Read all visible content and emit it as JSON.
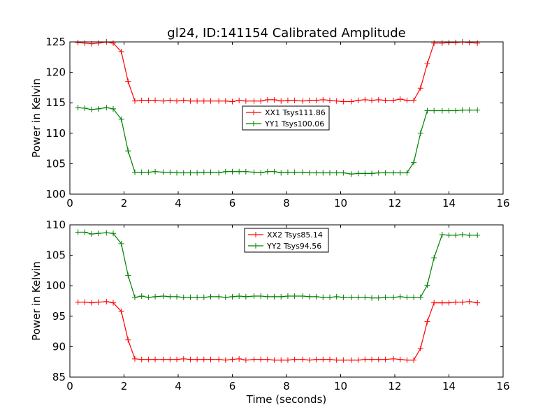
{
  "chart_data": [
    {
      "type": "line",
      "title": "gl24, ID:141154 Calibrated Amplitude",
      "xlabel": "",
      "ylabel": "Power in Kelvin",
      "xlim": [
        0,
        16
      ],
      "ylim": [
        100,
        125
      ],
      "xticks": [
        0,
        2,
        4,
        6,
        8,
        10,
        12,
        14,
        16
      ],
      "yticks": [
        100,
        105,
        110,
        115,
        120,
        125
      ],
      "grid": false,
      "legend_position": "center",
      "x": [
        0.3,
        0.55,
        0.8,
        1.05,
        1.35,
        1.6,
        1.9,
        2.15,
        2.4,
        2.65,
        2.9,
        3.15,
        3.45,
        3.7,
        3.95,
        4.2,
        4.45,
        4.7,
        4.95,
        5.2,
        5.5,
        5.75,
        6.0,
        6.25,
        6.5,
        6.8,
        7.05,
        7.3,
        7.55,
        7.8,
        8.05,
        8.3,
        8.6,
        8.85,
        9.1,
        9.35,
        9.6,
        9.85,
        10.1,
        10.4,
        10.65,
        10.9,
        11.15,
        11.4,
        11.65,
        11.95,
        12.2,
        12.45,
        12.7,
        12.95,
        13.2,
        13.45,
        13.75,
        14.0,
        14.25,
        14.5,
        14.75,
        15.05
      ],
      "series": [
        {
          "name": "XX1 Tsys111.86",
          "color": "#ff0000",
          "values": [
            124.9,
            124.8,
            124.7,
            124.8,
            125.0,
            124.8,
            123.4,
            118.5,
            115.3,
            115.4,
            115.4,
            115.4,
            115.3,
            115.4,
            115.3,
            115.4,
            115.3,
            115.3,
            115.3,
            115.3,
            115.3,
            115.3,
            115.2,
            115.4,
            115.3,
            115.3,
            115.3,
            115.5,
            115.5,
            115.3,
            115.4,
            115.4,
            115.3,
            115.4,
            115.4,
            115.5,
            115.4,
            115.3,
            115.2,
            115.2,
            115.4,
            115.5,
            115.4,
            115.5,
            115.4,
            115.4,
            115.6,
            115.4,
            115.4,
            117.4,
            121.4,
            124.8,
            124.8,
            124.9,
            124.9,
            125.0,
            124.9,
            124.8
          ]
        },
        {
          "name": "YY1 Tsys100.06",
          "color": "#008000",
          "values": [
            114.2,
            114.1,
            113.9,
            114.0,
            114.2,
            114.0,
            112.3,
            107.1,
            103.6,
            103.6,
            103.6,
            103.7,
            103.6,
            103.6,
            103.5,
            103.5,
            103.5,
            103.5,
            103.6,
            103.6,
            103.5,
            103.7,
            103.7,
            103.7,
            103.7,
            103.6,
            103.5,
            103.7,
            103.7,
            103.5,
            103.6,
            103.6,
            103.6,
            103.5,
            103.5,
            103.5,
            103.5,
            103.5,
            103.5,
            103.3,
            103.4,
            103.4,
            103.4,
            103.5,
            103.5,
            103.5,
            103.5,
            103.5,
            105.2,
            110.0,
            113.7,
            113.7,
            113.7,
            113.7,
            113.7,
            113.8,
            113.8,
            113.8
          ]
        }
      ]
    },
    {
      "type": "line",
      "title": "",
      "xlabel": "Time (seconds)",
      "ylabel": "Power in Kelvin",
      "xlim": [
        0,
        16
      ],
      "ylim": [
        85,
        110
      ],
      "xticks": [
        0,
        2,
        4,
        6,
        8,
        10,
        12,
        14,
        16
      ],
      "yticks": [
        85,
        90,
        95,
        100,
        105,
        110
      ],
      "grid": false,
      "legend_position": "top-center",
      "x": [
        0.3,
        0.55,
        0.8,
        1.05,
        1.35,
        1.6,
        1.9,
        2.15,
        2.4,
        2.65,
        2.9,
        3.15,
        3.45,
        3.7,
        3.95,
        4.2,
        4.45,
        4.7,
        4.95,
        5.2,
        5.5,
        5.75,
        6.0,
        6.25,
        6.5,
        6.8,
        7.05,
        7.3,
        7.55,
        7.8,
        8.05,
        8.3,
        8.6,
        8.85,
        9.1,
        9.35,
        9.6,
        9.85,
        10.1,
        10.4,
        10.65,
        10.9,
        11.15,
        11.4,
        11.65,
        11.95,
        12.2,
        12.45,
        12.7,
        12.95,
        13.2,
        13.45,
        13.75,
        14.0,
        14.25,
        14.5,
        14.75,
        15.05
      ],
      "series": [
        {
          "name": "XX2 Tsys85.14",
          "color": "#ff0000",
          "values": [
            97.3,
            97.3,
            97.2,
            97.3,
            97.4,
            97.2,
            95.8,
            91.1,
            88.0,
            87.9,
            87.9,
            87.9,
            87.9,
            87.9,
            87.9,
            88.0,
            87.9,
            87.9,
            87.9,
            87.9,
            87.9,
            87.8,
            87.9,
            88.0,
            87.8,
            87.9,
            87.9,
            87.9,
            87.8,
            87.8,
            87.8,
            87.9,
            87.9,
            87.8,
            87.9,
            87.9,
            87.9,
            87.8,
            87.8,
            87.8,
            87.8,
            87.9,
            87.9,
            87.9,
            87.9,
            88.0,
            87.9,
            87.8,
            87.8,
            89.7,
            94.1,
            97.2,
            97.2,
            97.2,
            97.3,
            97.3,
            97.4,
            97.2
          ]
        },
        {
          "name": "YY2 Tsys94.56",
          "color": "#008000",
          "values": [
            108.8,
            108.8,
            108.5,
            108.6,
            108.7,
            108.6,
            106.9,
            101.7,
            98.1,
            98.3,
            98.1,
            98.2,
            98.3,
            98.2,
            98.2,
            98.1,
            98.1,
            98.1,
            98.1,
            98.2,
            98.2,
            98.1,
            98.2,
            98.3,
            98.2,
            98.3,
            98.3,
            98.2,
            98.2,
            98.2,
            98.3,
            98.3,
            98.3,
            98.2,
            98.2,
            98.1,
            98.1,
            98.2,
            98.1,
            98.1,
            98.1,
            98.1,
            98.0,
            98.0,
            98.1,
            98.1,
            98.2,
            98.1,
            98.1,
            98.1,
            100.1,
            104.6,
            108.4,
            108.3,
            108.3,
            108.4,
            108.3,
            108.3
          ]
        }
      ]
    }
  ]
}
